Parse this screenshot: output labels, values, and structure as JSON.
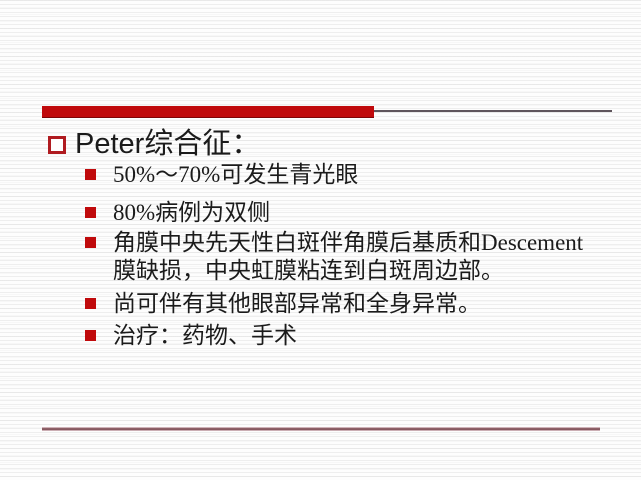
{
  "slide": {
    "title": {
      "text": "Peter综合征："
    },
    "bullets": [
      "50%～70%可发生青光眼",
      "80%病例为双侧",
      "角膜中央先天性白斑伴角膜后基质和Descement膜缺损，中央虹膜粘连到白斑周边部。",
      "尚可伴有其他眼部异常和全身异常。",
      "治疗：药物、手术"
    ],
    "colors": {
      "accent_red": "#c00a0c",
      "divider_extension": "#5f555c",
      "bottom_line": "#7a4850",
      "text": "#1b1b1b"
    }
  }
}
